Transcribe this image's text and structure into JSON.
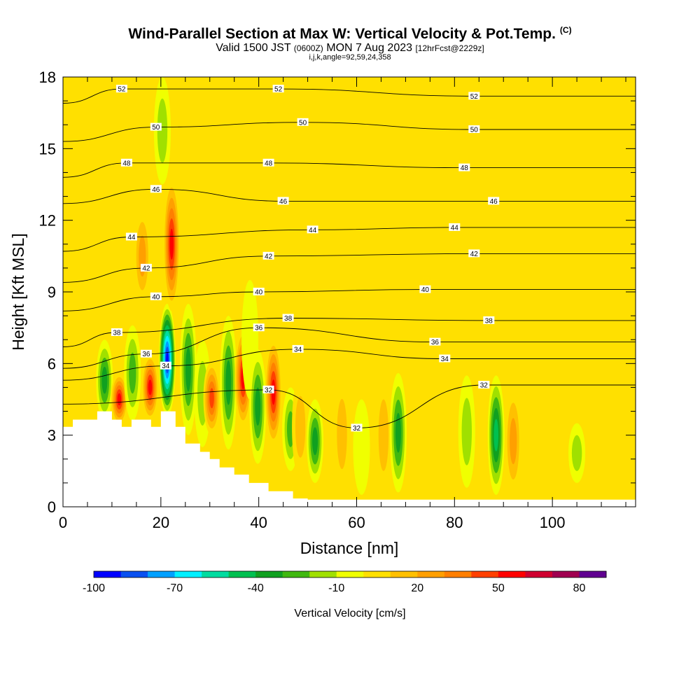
{
  "header": {
    "title": "Wind-Parallel Section at Max W: Vertical Velocity & Pot.Temp.",
    "copyright": "(C)",
    "subtitle_main": "Valid 1500 JST",
    "subtitle_utc": "(0600Z)",
    "subtitle_date": "MON 7 Aug 2023",
    "subtitle_fcst": "[12hrFcst@2229z]",
    "indices": "i,j,k,angle=92,59,24,358"
  },
  "colorbar": {
    "label": "Vertical Velocity [cm/s]",
    "tick_labels": [
      "-100",
      "-70",
      "-40",
      "-10",
      "20",
      "50",
      "80"
    ],
    "tick_values": [
      -100,
      -70,
      -40,
      -10,
      20,
      50,
      80
    ],
    "min": -100,
    "max": 90,
    "step": 10,
    "colors": [
      "#0000ff",
      "#0a50f0",
      "#00a0ff",
      "#00f0ff",
      "#00dca0",
      "#00c050",
      "#10a020",
      "#40b810",
      "#a0e000",
      "#f0ff00",
      "#ffe000",
      "#ffc000",
      "#ff9f00",
      "#ff7f00",
      "#ff4000",
      "#ff0000",
      "#d00030",
      "#a00050",
      "#600090"
    ]
  },
  "chart_data": {
    "type": "heatmap",
    "title": "Wind-Parallel Section at Max W: Vertical Velocity & Pot.Temp.",
    "xlabel": "Distance [nm]",
    "ylabel": "Height [Kft MSL]",
    "xlim": [
      0,
      117
    ],
    "ylim": [
      0,
      18
    ],
    "x_ticks": [
      "0",
      "20",
      "40",
      "60",
      "80",
      "100"
    ],
    "x_tick_values": [
      0,
      20,
      40,
      60,
      80,
      100
    ],
    "y_ticks": [
      "0",
      "3",
      "6",
      "9",
      "12",
      "15",
      "18"
    ],
    "y_tick_values": [
      0,
      3,
      6,
      9,
      12,
      15,
      18
    ],
    "background_value_cms": 0,
    "terrain_kft": [
      [
        0,
        3.35
      ],
      [
        2,
        3.35
      ],
      [
        2,
        3.65
      ],
      [
        7,
        3.65
      ],
      [
        7,
        4.0
      ],
      [
        10,
        4.0
      ],
      [
        10,
        3.65
      ],
      [
        12,
        3.65
      ],
      [
        12,
        3.35
      ],
      [
        14,
        3.35
      ],
      [
        14,
        3.65
      ],
      [
        18,
        3.65
      ],
      [
        18,
        3.35
      ],
      [
        20,
        3.35
      ],
      [
        20,
        4.0
      ],
      [
        23,
        4.0
      ],
      [
        23,
        3.35
      ],
      [
        25,
        3.35
      ],
      [
        25,
        2.65
      ],
      [
        28,
        2.65
      ],
      [
        28,
        2.3
      ],
      [
        30,
        2.3
      ],
      [
        30,
        2.0
      ],
      [
        32,
        2.0
      ],
      [
        32,
        1.65
      ],
      [
        35,
        1.65
      ],
      [
        35,
        1.35
      ],
      [
        38,
        1.35
      ],
      [
        38,
        1.0
      ],
      [
        42,
        1.0
      ],
      [
        42,
        0.65
      ],
      [
        47,
        0.65
      ],
      [
        47,
        0.35
      ],
      [
        50,
        0.35
      ],
      [
        50,
        0.3
      ],
      [
        117,
        0.3
      ]
    ],
    "vertical_velocity_cells": [
      {
        "x": 8.5,
        "z0": 3.6,
        "z1": 7.0,
        "w": -40
      },
      {
        "x": 11.5,
        "z0": 3.4,
        "z1": 5.6,
        "w": 60
      },
      {
        "x": 14.2,
        "z0": 3.6,
        "z1": 7.6,
        "w": -30
      },
      {
        "x": 17.8,
        "z0": 3.6,
        "z1": 6.4,
        "w": 60
      },
      {
        "x": 21.3,
        "z0": 3.8,
        "z1": 8.5,
        "w": -100
      },
      {
        "x": 22.2,
        "z0": 8.2,
        "z1": 13.8,
        "w": 60
      },
      {
        "x": 20.3,
        "z0": 13.5,
        "z1": 18.0,
        "w": -20
      },
      {
        "x": 16.2,
        "z0": 8.5,
        "z1": 12.5,
        "w": 30
      },
      {
        "x": 25.6,
        "z0": 3.0,
        "z1": 8.5,
        "w": -40
      },
      {
        "x": 28.5,
        "z0": 2.5,
        "z1": 7.0,
        "w": -20
      },
      {
        "x": 30.4,
        "z0": 3.0,
        "z1": 6.1,
        "w": 50
      },
      {
        "x": 33.8,
        "z0": 2.4,
        "z1": 8.0,
        "w": -40
      },
      {
        "x": 36.8,
        "z0": 3.3,
        "z1": 7.5,
        "w": 60
      },
      {
        "x": 38.2,
        "z0": 4.5,
        "z1": 9.5,
        "w": -10
      },
      {
        "x": 39.8,
        "z0": 1.8,
        "z1": 6.6,
        "w": -40
      },
      {
        "x": 43.0,
        "z0": 2.5,
        "z1": 7.1,
        "w": 60
      },
      {
        "x": 46.5,
        "z0": 1.5,
        "z1": 5.0,
        "w": -30
      },
      {
        "x": 48.5,
        "z0": 1.2,
        "z1": 5.5,
        "w": 20
      },
      {
        "x": 51.5,
        "z0": 1.0,
        "z1": 4.5,
        "w": -40
      },
      {
        "x": 57.0,
        "z0": 0.6,
        "z1": 5.5,
        "w": 20
      },
      {
        "x": 61.0,
        "z0": 0.5,
        "z1": 4.5,
        "w": -10
      },
      {
        "x": 65.5,
        "z0": 0.5,
        "z1": 5.5,
        "w": 20
      },
      {
        "x": 68.5,
        "z0": 0.6,
        "z1": 5.6,
        "w": -40
      },
      {
        "x": 75.0,
        "z0": 1.0,
        "z1": 6.5,
        "w": 10
      },
      {
        "x": 82.5,
        "z0": 0.8,
        "z1": 5.5,
        "w": -20
      },
      {
        "x": 88.5,
        "z0": 0.5,
        "z1": 5.5,
        "w": -50
      },
      {
        "x": 92.0,
        "z0": 0.5,
        "z1": 5.0,
        "w": 30
      },
      {
        "x": 105.0,
        "z0": 1.0,
        "z1": 3.5,
        "w": -20
      },
      {
        "x": 112.0,
        "z0": 0.4,
        "z1": 4.2,
        "w": 10
      },
      {
        "x": 70.0,
        "z0": 8.0,
        "z1": 18.0,
        "w": 10
      },
      {
        "x": 86.0,
        "z0": 9.0,
        "z1": 18.0,
        "w": 10
      },
      {
        "x": 102.0,
        "z0": 11.0,
        "z1": 18.0,
        "w": 10
      }
    ],
    "pot_temp_contour_labels": [
      {
        "text": "52",
        "x": 12,
        "z": 17.5
      },
      {
        "text": "52",
        "x": 44,
        "z": 17.5
      },
      {
        "text": "52",
        "x": 84,
        "z": 17.2
      },
      {
        "text": "50",
        "x": 19,
        "z": 15.9
      },
      {
        "text": "50",
        "x": 49,
        "z": 16.1
      },
      {
        "text": "50",
        "x": 84,
        "z": 15.8
      },
      {
        "text": "48",
        "x": 13,
        "z": 14.4
      },
      {
        "text": "48",
        "x": 42,
        "z": 14.4
      },
      {
        "text": "48",
        "x": 82,
        "z": 14.2
      },
      {
        "text": "46",
        "x": 19,
        "z": 13.3
      },
      {
        "text": "46",
        "x": 45,
        "z": 12.8
      },
      {
        "text": "46",
        "x": 88,
        "z": 12.8
      },
      {
        "text": "44",
        "x": 14,
        "z": 11.3
      },
      {
        "text": "44",
        "x": 51,
        "z": 11.6
      },
      {
        "text": "44",
        "x": 80,
        "z": 11.7
      },
      {
        "text": "42",
        "x": 17,
        "z": 10.0
      },
      {
        "text": "42",
        "x": 42,
        "z": 10.5
      },
      {
        "text": "42",
        "x": 84,
        "z": 10.6
      },
      {
        "text": "40",
        "x": 19,
        "z": 8.8
      },
      {
        "text": "40",
        "x": 40,
        "z": 9.0
      },
      {
        "text": "40",
        "x": 74,
        "z": 9.1
      },
      {
        "text": "38",
        "x": 11,
        "z": 7.3
      },
      {
        "text": "38",
        "x": 46,
        "z": 7.9
      },
      {
        "text": "38",
        "x": 87,
        "z": 7.8
      },
      {
        "text": "36",
        "x": 17,
        "z": 6.4
      },
      {
        "text": "36",
        "x": 40,
        "z": 7.5
      },
      {
        "text": "36",
        "x": 76,
        "z": 6.9
      },
      {
        "text": "34",
        "x": 21,
        "z": 5.9
      },
      {
        "text": "34",
        "x": 48,
        "z": 6.6
      },
      {
        "text": "34",
        "x": 78,
        "z": 6.2
      },
      {
        "text": "32",
        "x": 42,
        "z": 4.9
      },
      {
        "text": "32",
        "x": 60,
        "z": 3.3
      },
      {
        "text": "32",
        "x": 86,
        "z": 5.1
      }
    ]
  }
}
